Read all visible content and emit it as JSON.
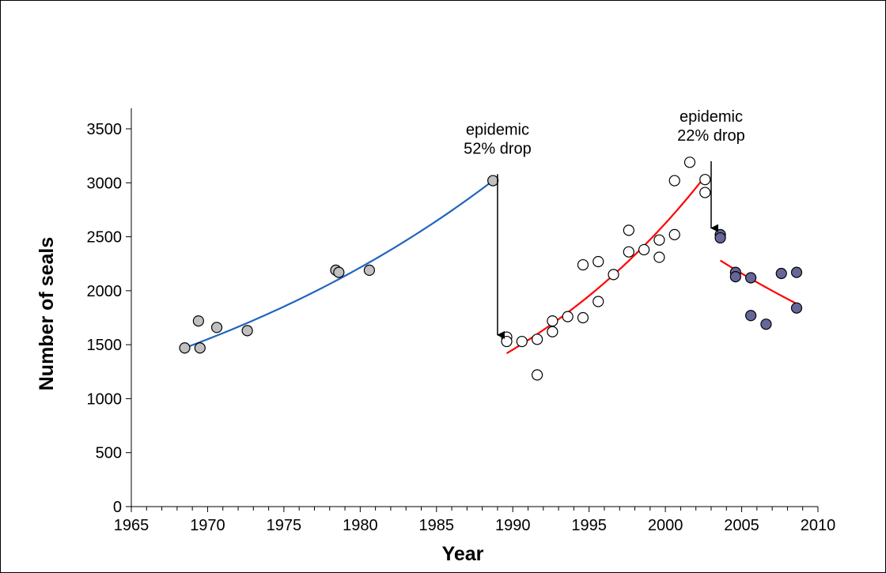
{
  "chart_data": {
    "type": "scatter",
    "title": "",
    "xlabel": "Year",
    "ylabel": "Number of seals",
    "xlim": [
      1965,
      2010
    ],
    "ylim": [
      0,
      3500
    ],
    "x_ticks": [
      1965,
      1970,
      1975,
      1980,
      1985,
      1990,
      1995,
      2000,
      2005,
      2010
    ],
    "y_ticks": [
      0,
      500,
      1000,
      1500,
      2000,
      2500,
      3000,
      3500
    ],
    "x_minor_step": 1,
    "grid": false,
    "legend": "none",
    "series": [
      {
        "fill": "#c0c0c0",
        "points": [
          [
            1968.5,
            1470
          ],
          [
            1969.4,
            1720
          ],
          [
            1969.5,
            1470
          ],
          [
            1970.6,
            1660
          ],
          [
            1972.6,
            1630
          ],
          [
            1978.4,
            2190
          ],
          [
            1978.6,
            2170
          ],
          [
            1980.6,
            2190
          ],
          [
            1988.7,
            3020
          ]
        ]
      },
      {
        "fill": "#ffffff",
        "points": [
          [
            1989.6,
            1570
          ],
          [
            1989.6,
            1530
          ],
          [
            1990.6,
            1530
          ],
          [
            1991.6,
            1220
          ],
          [
            1991.6,
            1550
          ],
          [
            1992.6,
            1720
          ],
          [
            1992.6,
            1620
          ],
          [
            1993.6,
            1760
          ],
          [
            1994.6,
            2240
          ],
          [
            1994.6,
            1750
          ],
          [
            1995.6,
            2270
          ],
          [
            1995.6,
            1900
          ],
          [
            1996.6,
            2150
          ],
          [
            1997.6,
            2560
          ],
          [
            1997.6,
            2360
          ],
          [
            1998.6,
            2380
          ],
          [
            1999.6,
            2470
          ],
          [
            1999.6,
            2310
          ],
          [
            2000.6,
            3020
          ],
          [
            2000.6,
            2520
          ],
          [
            2001.6,
            3190
          ],
          [
            2002.6,
            3030
          ],
          [
            2002.6,
            2910
          ]
        ]
      },
      {
        "fill": "#666699",
        "points": [
          [
            2003.6,
            2520
          ],
          [
            2003.6,
            2490
          ],
          [
            2004.6,
            2170
          ],
          [
            2004.6,
            2130
          ],
          [
            2005.6,
            2120
          ],
          [
            2005.6,
            1770
          ],
          [
            2006.6,
            1690
          ],
          [
            2007.6,
            2160
          ],
          [
            2008.6,
            2170
          ],
          [
            2008.6,
            1840
          ]
        ]
      }
    ],
    "trend_lines": [
      {
        "color": "#1f64c0",
        "x_range": [
          1968.5,
          1988.7
        ],
        "y_start": 1470,
        "y_end": 3020
      },
      {
        "color": "#ff0000",
        "x_range": [
          1989.6,
          2002.6
        ],
        "y_start": 1420,
        "y_end": 3060
      },
      {
        "color": "#ff0000",
        "x_range": [
          2003.6,
          2008.6
        ],
        "y_start": 2280,
        "y_end": 1880
      }
    ],
    "annotations": [
      {
        "lines": [
          "epidemic",
          "52% drop"
        ],
        "arrow_x": 1989.0,
        "arrow_from": 3080,
        "arrow_to": 1590
      },
      {
        "lines": [
          "epidemic",
          "22% drop"
        ],
        "arrow_x": 2003.0,
        "arrow_from": 3200,
        "arrow_to": 2580
      }
    ]
  }
}
